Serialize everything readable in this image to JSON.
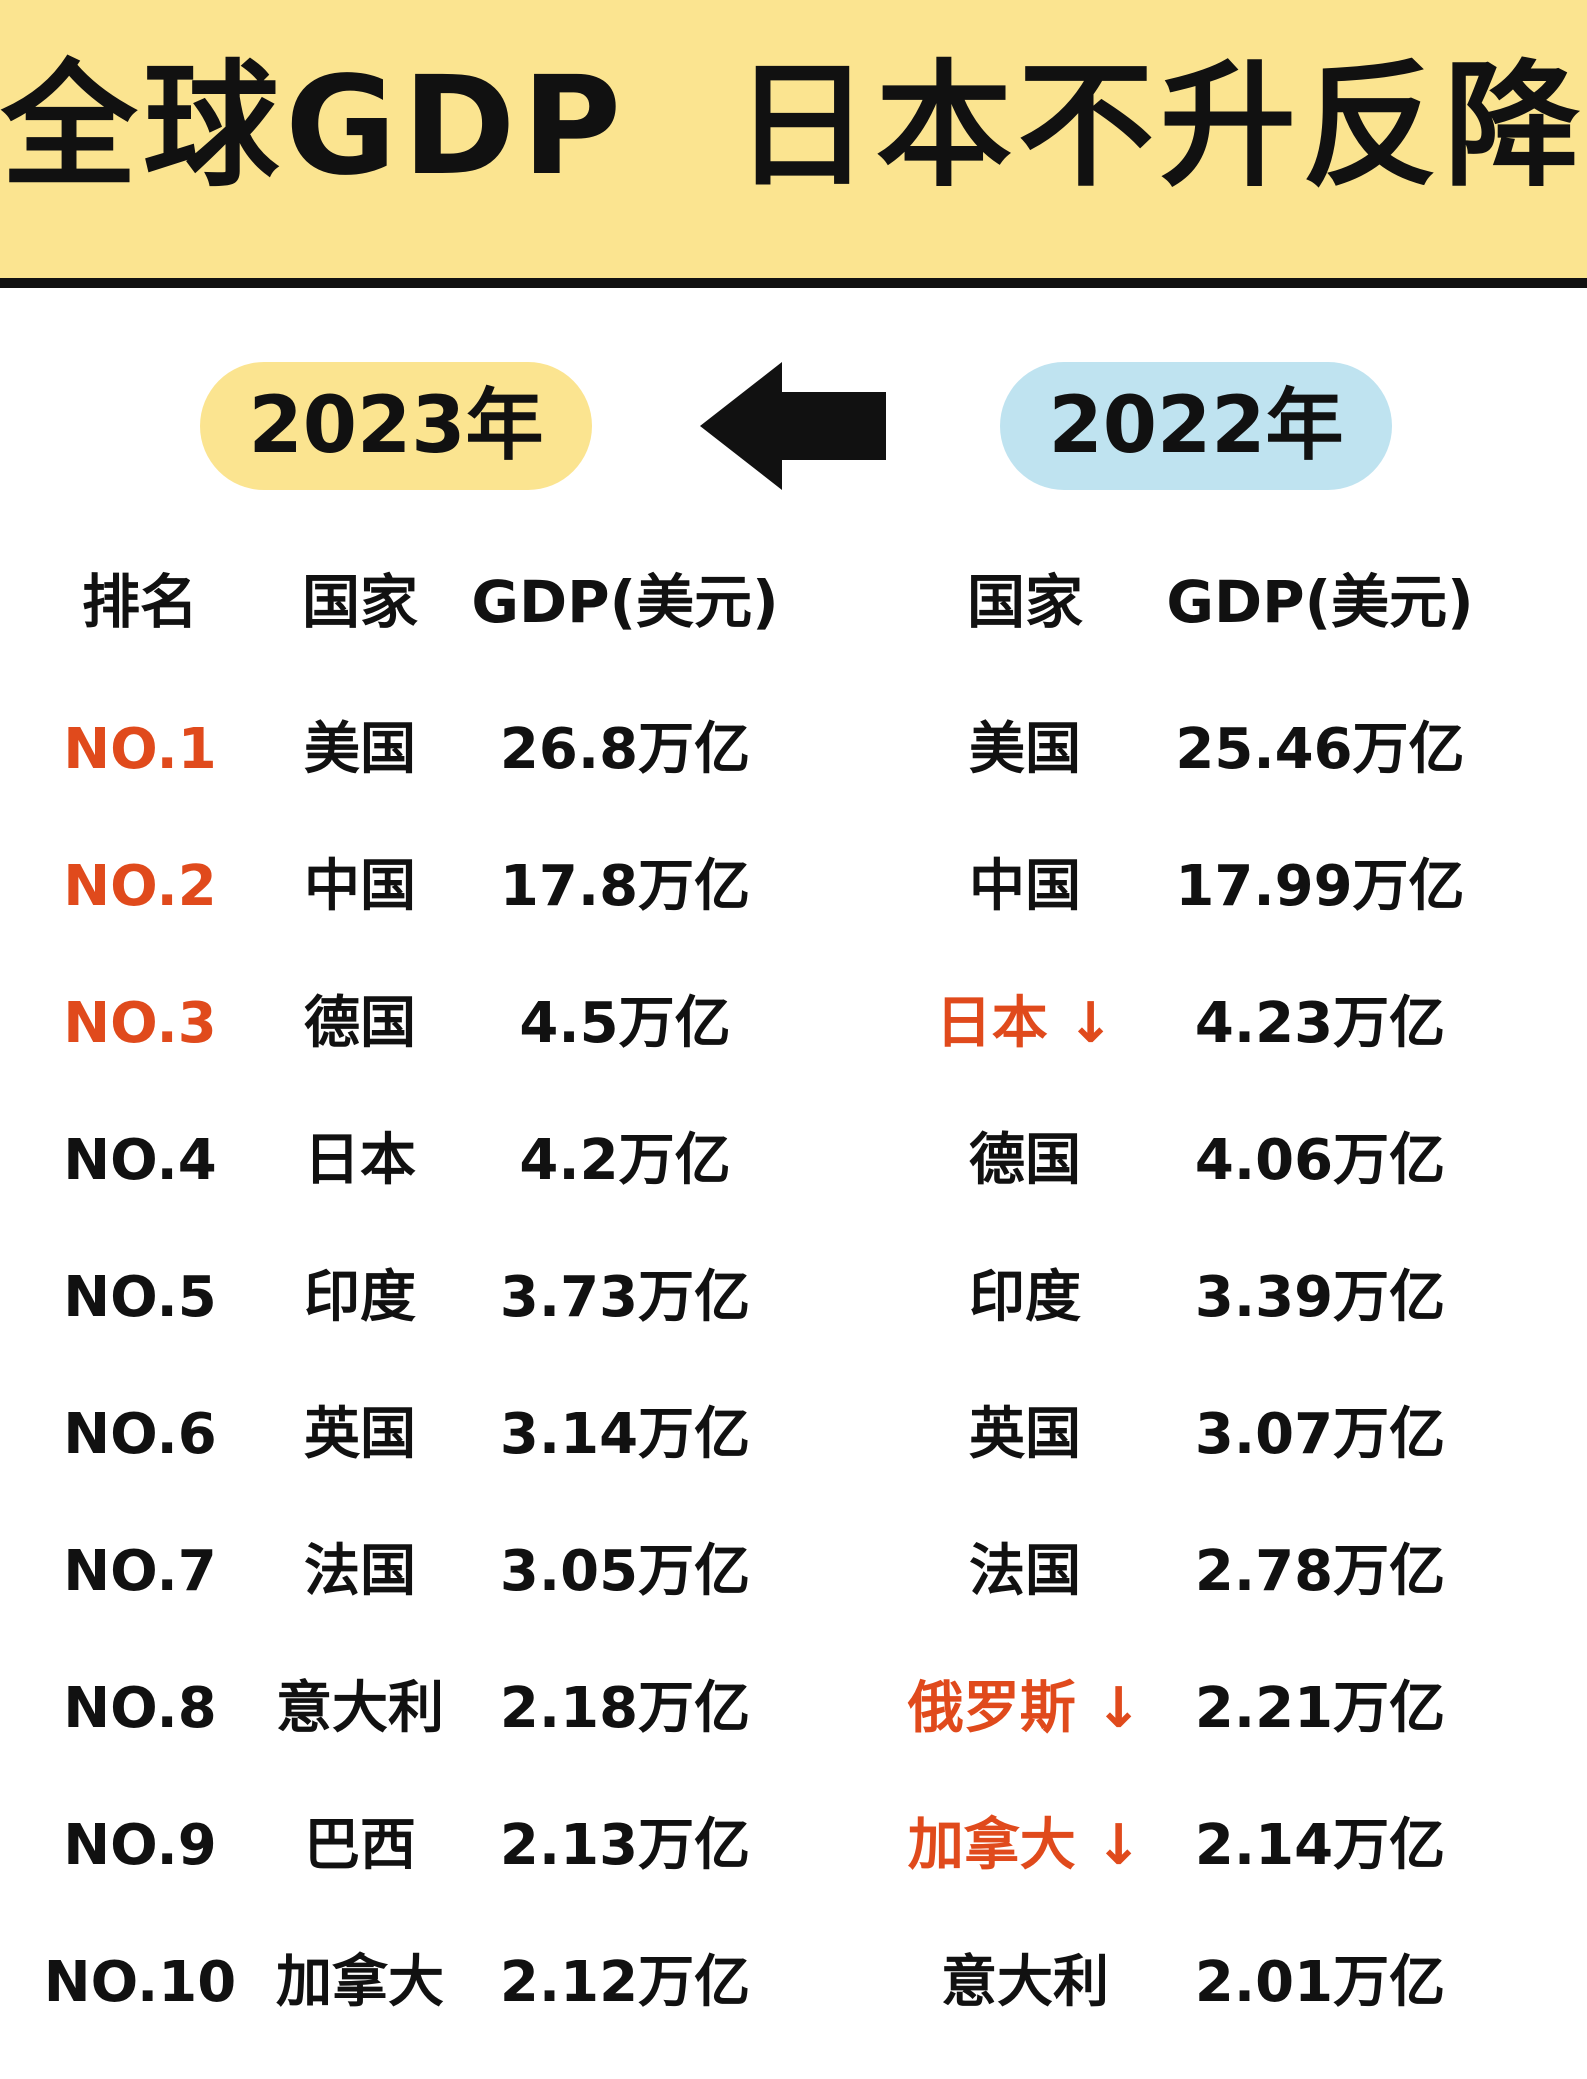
{
  "title": "全球GDP  日本不升反降",
  "years": {
    "left": "2023年",
    "right": "2022年"
  },
  "headers": {
    "rank": "排名",
    "country_2023": "国家",
    "gdp_2023": "GDP(美元)",
    "country_2022": "国家",
    "gdp_2022": "GDP(美元)"
  },
  "rows": [
    {
      "rank": "NO.1",
      "country_2023": "美国",
      "gdp_2023": "26.8万亿",
      "country_2022": "美国",
      "gdp_2022": "25.46万亿"
    },
    {
      "rank": "NO.2",
      "country_2023": "中国",
      "gdp_2023": "17.8万亿",
      "country_2022": "中国",
      "gdp_2022": "17.99万亿"
    },
    {
      "rank": "NO.3",
      "country_2023": "德国",
      "gdp_2023": "4.5万亿",
      "country_2022": "日本 ↓",
      "gdp_2022": "4.23万亿"
    },
    {
      "rank": "NO.4",
      "country_2023": "日本",
      "gdp_2023": "4.2万亿",
      "country_2022": "德国",
      "gdp_2022": "4.06万亿"
    },
    {
      "rank": "NO.5",
      "country_2023": "印度",
      "gdp_2023": "3.73万亿",
      "country_2022": "印度",
      "gdp_2022": "3.39万亿"
    },
    {
      "rank": "NO.6",
      "country_2023": "英国",
      "gdp_2023": "3.14万亿",
      "country_2022": "英国",
      "gdp_2022": "3.07万亿"
    },
    {
      "rank": "NO.7",
      "country_2023": "法国",
      "gdp_2023": "3.05万亿",
      "country_2022": "法国",
      "gdp_2022": "2.78万亿"
    },
    {
      "rank": "NO.8",
      "country_2023": "意大利",
      "gdp_2023": "2.18万亿",
      "country_2022": "俄罗斯 ↓",
      "gdp_2022": "2.21万亿"
    },
    {
      "rank": "NO.9",
      "country_2023": "巴西",
      "gdp_2023": "2.13万亿",
      "country_2022": "加拿大 ↓",
      "gdp_2022": "2.14万亿"
    },
    {
      "rank": "NO.10",
      "country_2023": "加拿大",
      "gdp_2023": "2.12万亿",
      "country_2022": "意大利",
      "gdp_2022": "2.01万亿"
    }
  ],
  "colors": {
    "banner": "#fbe490",
    "pill_2023": "#fbe490",
    "pill_2022": "#bfe3f0",
    "highlight": "#e04a1c",
    "text": "#111111"
  },
  "icons": {
    "arrow": "left-arrow-icon"
  }
}
